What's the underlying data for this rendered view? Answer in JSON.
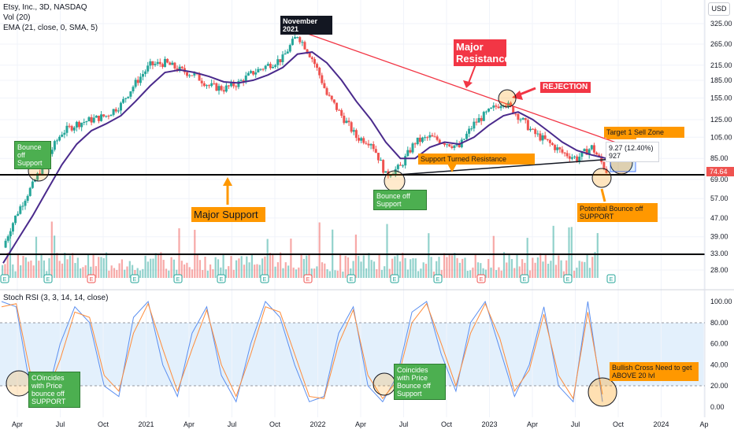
{
  "header": {
    "symbol_line": "Etsy, Inc., 3D, NASDAQ",
    "vol_line": "Vol (20)",
    "ema_line": "EMA (21, close, 0, SMA, 5)",
    "currency": "USD"
  },
  "rsi_header": "Stoch RSI (3, 3, 14, 14, close)",
  "annotations": {
    "november_2021": "November 2021",
    "major_resistance": "Major Resistance",
    "rejection": "REJECTION",
    "target_sell": "Target 1 Sell Zone",
    "measure": "9.27 (12.40%) 927",
    "support_turned_resistance": "Support Turned Resistance",
    "bounce_left": "Bounce off Support",
    "bounce_mid": "Bounce off Support",
    "major_support": "Major Support",
    "potential_bounce": "Potential Bounce off SUPPORT",
    "rsi_left": "COincides with Price bounce off SUPPORT",
    "rsi_mid": "Coincides with Price Bounce off Support",
    "rsi_right": "Bullish Cross Need to get ABOVE 20 lvl"
  },
  "colors": {
    "up": "#26a69a",
    "down": "#ef5350",
    "ema": "#4a2a8c",
    "resistance": "#f23645",
    "support": "#000000",
    "k_line": "#5b8ff0",
    "d_line": "#ff8c3a",
    "rsi_band": "#e3f0fc",
    "last_price_bg": "#ef5350"
  },
  "chart_data": [
    {
      "type": "candlestick",
      "title": "Etsy, Inc., 3D, NASDAQ",
      "x_tick_labels": [
        "Apr",
        "Jul",
        "Oct",
        "2021",
        "Apr",
        "Jul",
        "Oct",
        "2022",
        "Apr",
        "Jul",
        "Oct",
        "2023",
        "Apr",
        "Jul",
        "Oct",
        "2024",
        "Ap"
      ],
      "y_tick_labels": [
        "325.00",
        "265.00",
        "215.00",
        "185.00",
        "155.00",
        "125.00",
        "105.00",
        "85.00",
        "69.00",
        "57.00",
        "47.00",
        "39.00",
        "33.00",
        "28.00"
      ],
      "y_scale": "log",
      "last_price": "74.64",
      "series": [
        {
          "name": "Etsy, Inc.",
          "x": [
            "2020-03",
            "2020-04",
            "2020-05",
            "2020-06",
            "2020-07",
            "2020-08",
            "2020-09",
            "2020-10",
            "2020-11",
            "2020-12",
            "2021-01",
            "2021-02",
            "2021-03",
            "2021-04",
            "2021-05",
            "2021-06",
            "2021-07",
            "2021-08",
            "2021-09",
            "2021-10",
            "2021-11",
            "2021-12",
            "2022-01",
            "2022-02",
            "2022-03",
            "2022-04",
            "2022-05",
            "2022-06",
            "2022-07",
            "2022-08",
            "2022-09",
            "2022-10",
            "2022-11",
            "2022-12",
            "2023-01",
            "2023-02",
            "2023-03",
            "2023-04",
            "2023-05",
            "2023-06",
            "2023-07",
            "2023-08"
          ],
          "close": [
            35,
            50,
            65,
            85,
            110,
            120,
            125,
            130,
            145,
            180,
            215,
            220,
            205,
            195,
            175,
            170,
            180,
            200,
            215,
            230,
            290,
            230,
            160,
            130,
            105,
            100,
            72,
            78,
            100,
            105,
            100,
            95,
            120,
            135,
            150,
            130,
            110,
            100,
            90,
            85,
            95,
            75
          ]
        },
        {
          "name": "EMA (21, close, 0, SMA, 5)",
          "close": [
            30,
            38,
            48,
            62,
            80,
            98,
            112,
            120,
            130,
            150,
            175,
            200,
            205,
            200,
            192,
            182,
            180,
            185,
            195,
            210,
            240,
            245,
            220,
            185,
            150,
            125,
            100,
            85,
            85,
            95,
            100,
            98,
            105,
            118,
            130,
            135,
            125,
            112,
            100,
            92,
            88,
            85
          ]
        }
      ],
      "trendlines": [
        {
          "name": "Major Resistance",
          "from": [
            "2021-11",
            295
          ],
          "to": [
            "2023-09",
            92
          ]
        },
        {
          "name": "Support Turned Resistance",
          "from": [
            "2022-06",
            71
          ],
          "to": [
            "2023-09",
            86
          ]
        },
        {
          "name": "Major Support",
          "value": 71
        },
        {
          "name": "Volume floor",
          "value": 33
        }
      ]
    },
    {
      "type": "line",
      "title": "Stoch RSI (3, 3, 14, 14, close)",
      "y_tick_labels": [
        "100.00",
        "80.00",
        "60.00",
        "40.00",
        "20.00",
        "0.00"
      ],
      "ylim": [
        0,
        100
      ],
      "band": [
        20,
        80
      ],
      "series": [
        {
          "name": "K",
          "values": [
            100,
            95,
            15,
            5,
            60,
            95,
            80,
            20,
            10,
            85,
            100,
            40,
            10,
            70,
            95,
            30,
            5,
            60,
            100,
            85,
            40,
            5,
            10,
            70,
            95,
            20,
            5,
            30,
            90,
            100,
            50,
            15,
            80,
            100,
            55,
            10,
            40,
            95,
            20,
            5,
            100,
            5
          ]
        },
        {
          "name": "D",
          "values": [
            95,
            98,
            30,
            10,
            45,
            90,
            85,
            30,
            15,
            70,
            98,
            55,
            15,
            55,
            92,
            40,
            10,
            50,
            95,
            90,
            50,
            10,
            8,
            60,
            92,
            30,
            8,
            25,
            80,
            98,
            60,
            20,
            70,
            98,
            65,
            15,
            35,
            88,
            30,
            8,
            90,
            12
          ]
        }
      ]
    }
  ]
}
